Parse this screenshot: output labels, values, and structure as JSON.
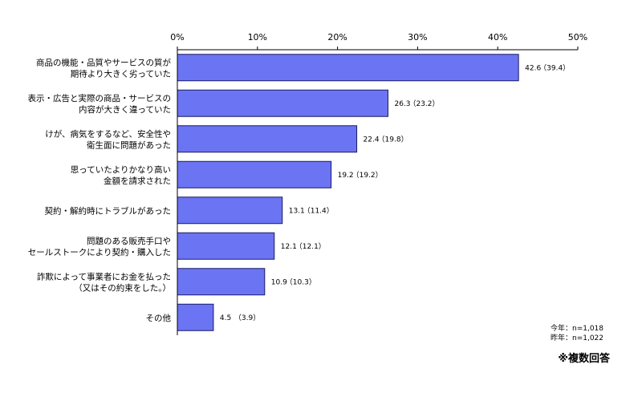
{
  "chart_data": {
    "type": "bar",
    "orientation": "horizontal",
    "categories": [
      [
        "商品の機能・品質やサービスの質が",
        "期待より大きく劣っていた"
      ],
      [
        "表示・広告と実際の商品・サービスの",
        "内容が大きく違っていた"
      ],
      [
        "けが、病気をするなど、安全性や",
        "衛生面に問題があった"
      ],
      [
        "思っていたよりかなり高い",
        "金額を請求された"
      ],
      [
        "契約・解約時にトラブルがあった"
      ],
      [
        "問題のある販売手口や",
        "セールストークにより契約・購入した"
      ],
      [
        "詐欺によって事業者にお金を払った",
        "（又はその約束をした。）"
      ],
      [
        "その他"
      ]
    ],
    "values": [
      42.6,
      26.3,
      22.4,
      19.2,
      13.1,
      12.1,
      10.9,
      4.5
    ],
    "value_labels": [
      "42.6",
      "26.3",
      "22.4",
      "19.2",
      "13.1",
      "12.1",
      "10.9",
      "4.5"
    ],
    "previous_year_labels": [
      "（39.4）",
      "（23.2）",
      "（19.8）",
      "（19.2）",
      "（11.4）",
      "（12.1）",
      "（10.3）",
      "（3.9）"
    ],
    "xlim": [
      0,
      50
    ],
    "xticks": [
      0,
      10,
      20,
      30,
      40,
      50
    ],
    "xtick_labels": [
      "0%",
      "10%",
      "20%",
      "30%",
      "40%",
      "50%"
    ],
    "grid": false,
    "bar_color": "#6B74F2",
    "bar_edge_color": "#1A1A66"
  },
  "notes": {
    "this_year": "今年：n=1,018",
    "last_year": "昨年：n=1,022",
    "multi_answer": "※複数回答"
  }
}
